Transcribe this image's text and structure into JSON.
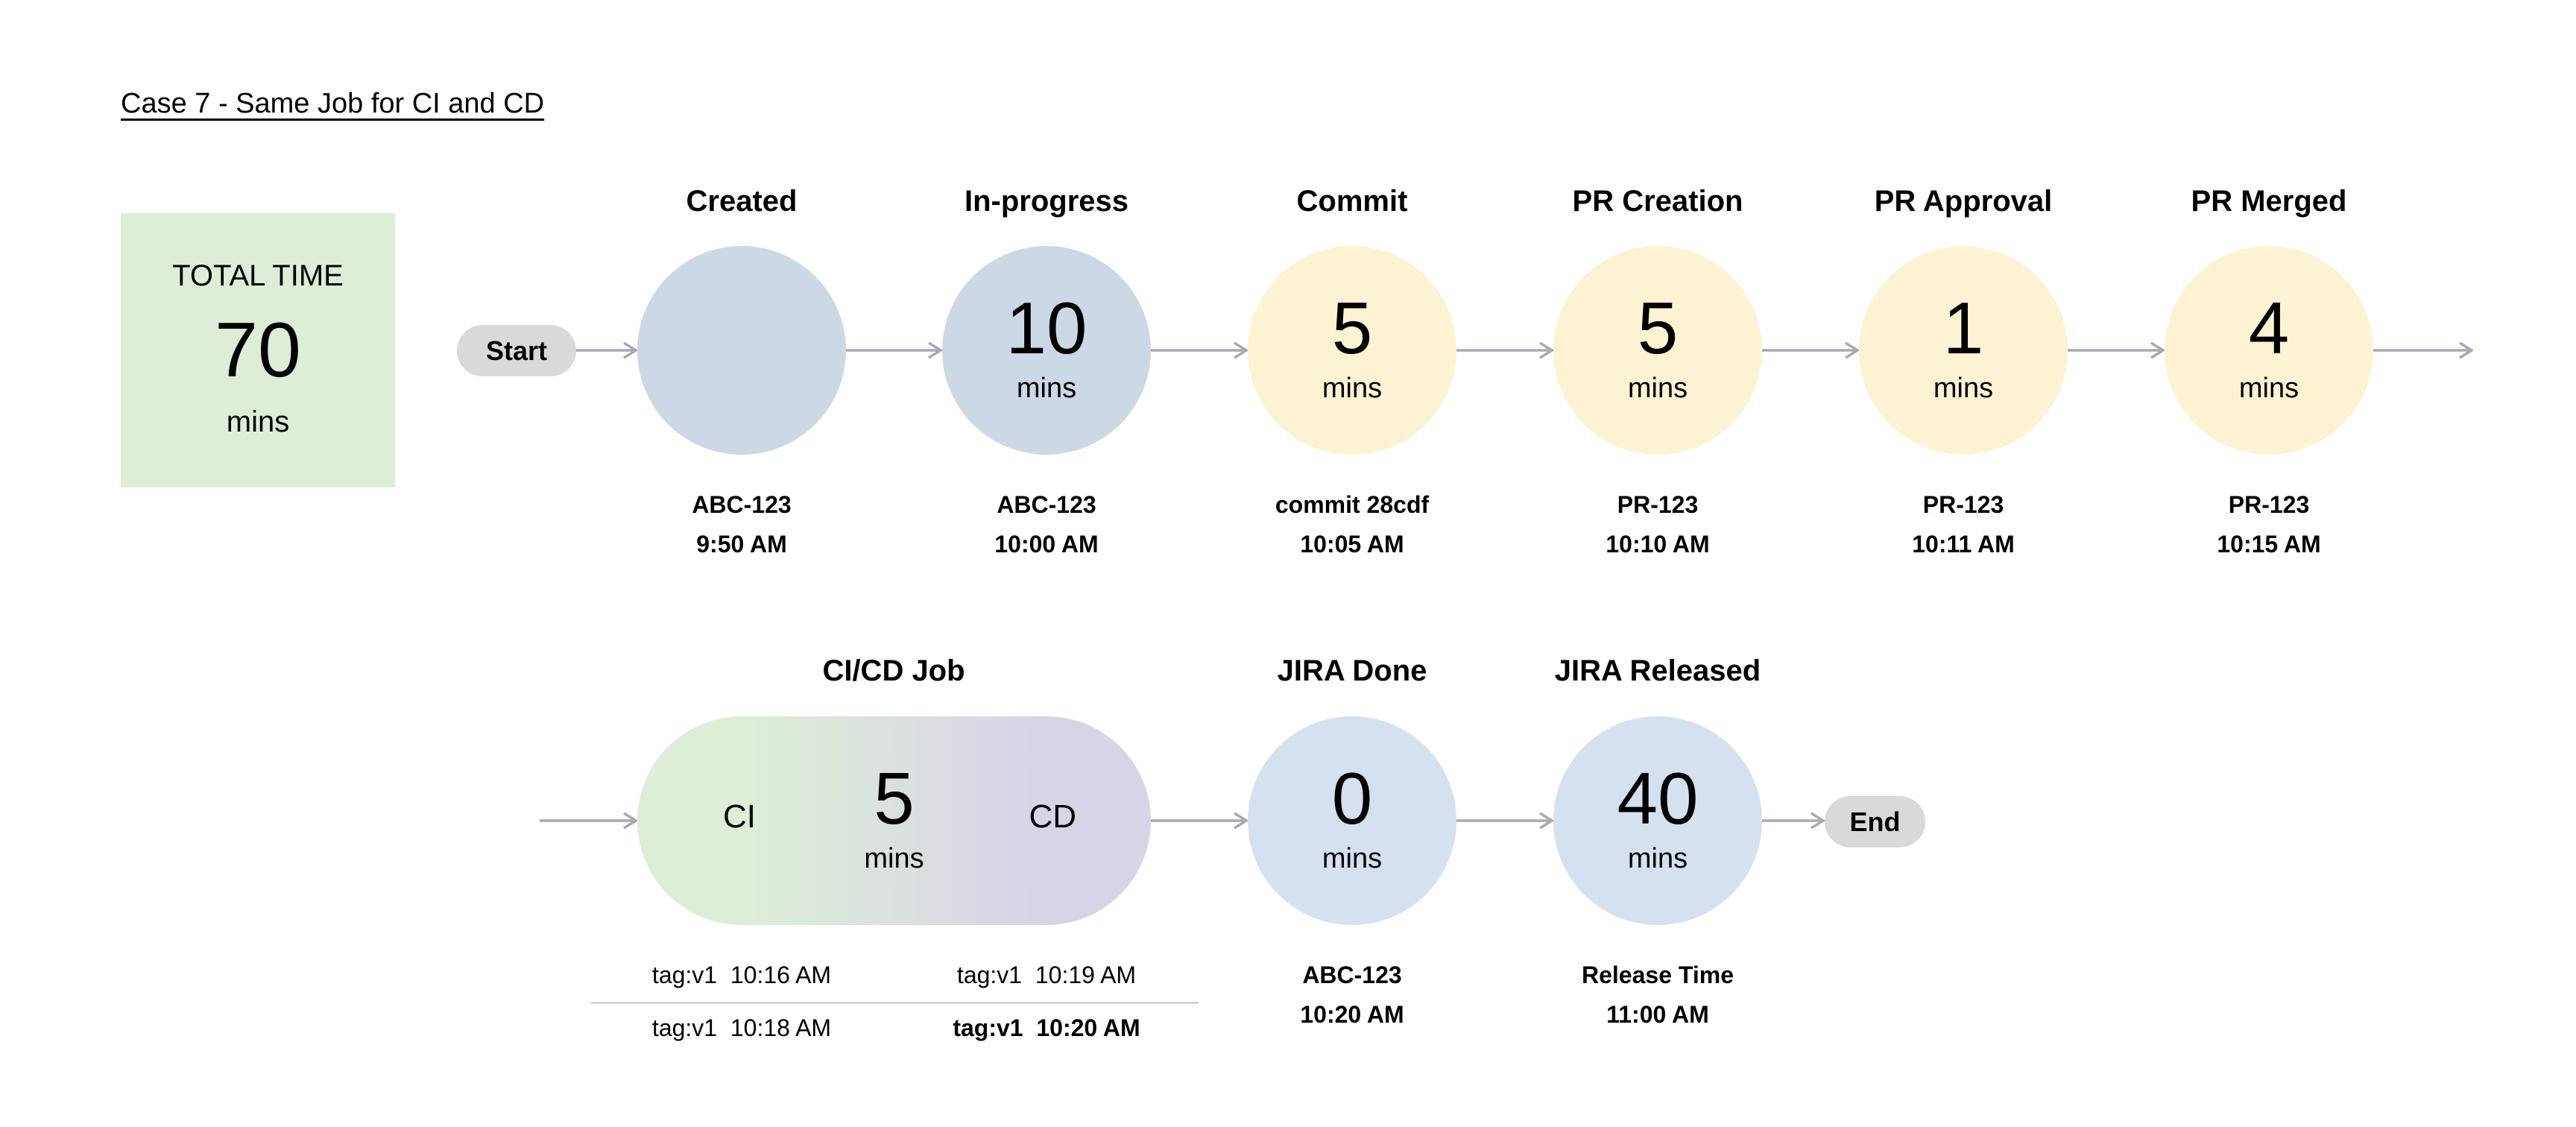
{
  "title": "Case 7 - Same Job for CI and CD",
  "total": {
    "label": "TOTAL TIME",
    "value": "70",
    "unit": "mins"
  },
  "start_label": "Start",
  "end_label": "End",
  "colors": {
    "backlog": "#CBD9E6",
    "dev": "#FDF3D3",
    "ci": "#DDEED6",
    "cd": "#D8D3E7",
    "jira": "#D3E1F1",
    "pill": "#D9D9D9",
    "arrow": "#A9A9B3",
    "total_bg": "#DDEED6"
  },
  "stages": [
    {
      "name": "Created",
      "value": "",
      "unit": "",
      "ref": "ABC-123",
      "time": "9:50 AM"
    },
    {
      "name": "In-progress",
      "value": "10",
      "unit": "mins",
      "ref": "ABC-123",
      "time": "10:00 AM"
    },
    {
      "name": "Commit",
      "value": "5",
      "unit": "mins",
      "ref": "commit 28cdf",
      "time": "10:05 AM"
    },
    {
      "name": "PR Creation",
      "value": "5",
      "unit": "mins",
      "ref": "PR-123",
      "time": "10:10 AM"
    },
    {
      "name": "PR Approval",
      "value": "1",
      "unit": "mins",
      "ref": "PR-123",
      "time": "10:11 AM"
    },
    {
      "name": "PR Merged",
      "value": "4",
      "unit": "mins",
      "ref": "PR-123",
      "time": "10:15 AM"
    }
  ],
  "cicd": {
    "name": "CI/CD Job",
    "ci_label": "CI",
    "cd_label": "CD",
    "value": "5",
    "unit": "mins",
    "tags": [
      {
        "ci": "tag:v1  10:16 AM",
        "cd": "tag:v1  10:19 AM"
      },
      {
        "ci": "tag:v1  10:18 AM",
        "cd": "tag:v1  10:20 AM"
      }
    ]
  },
  "jira_done": {
    "name": "JIRA Done",
    "value": "0",
    "unit": "mins",
    "ref": "ABC-123",
    "time": "10:20 AM"
  },
  "jira_released": {
    "name": "JIRA Released",
    "value": "40",
    "unit": "mins",
    "ref": "Release Time",
    "time": "11:00 AM"
  }
}
